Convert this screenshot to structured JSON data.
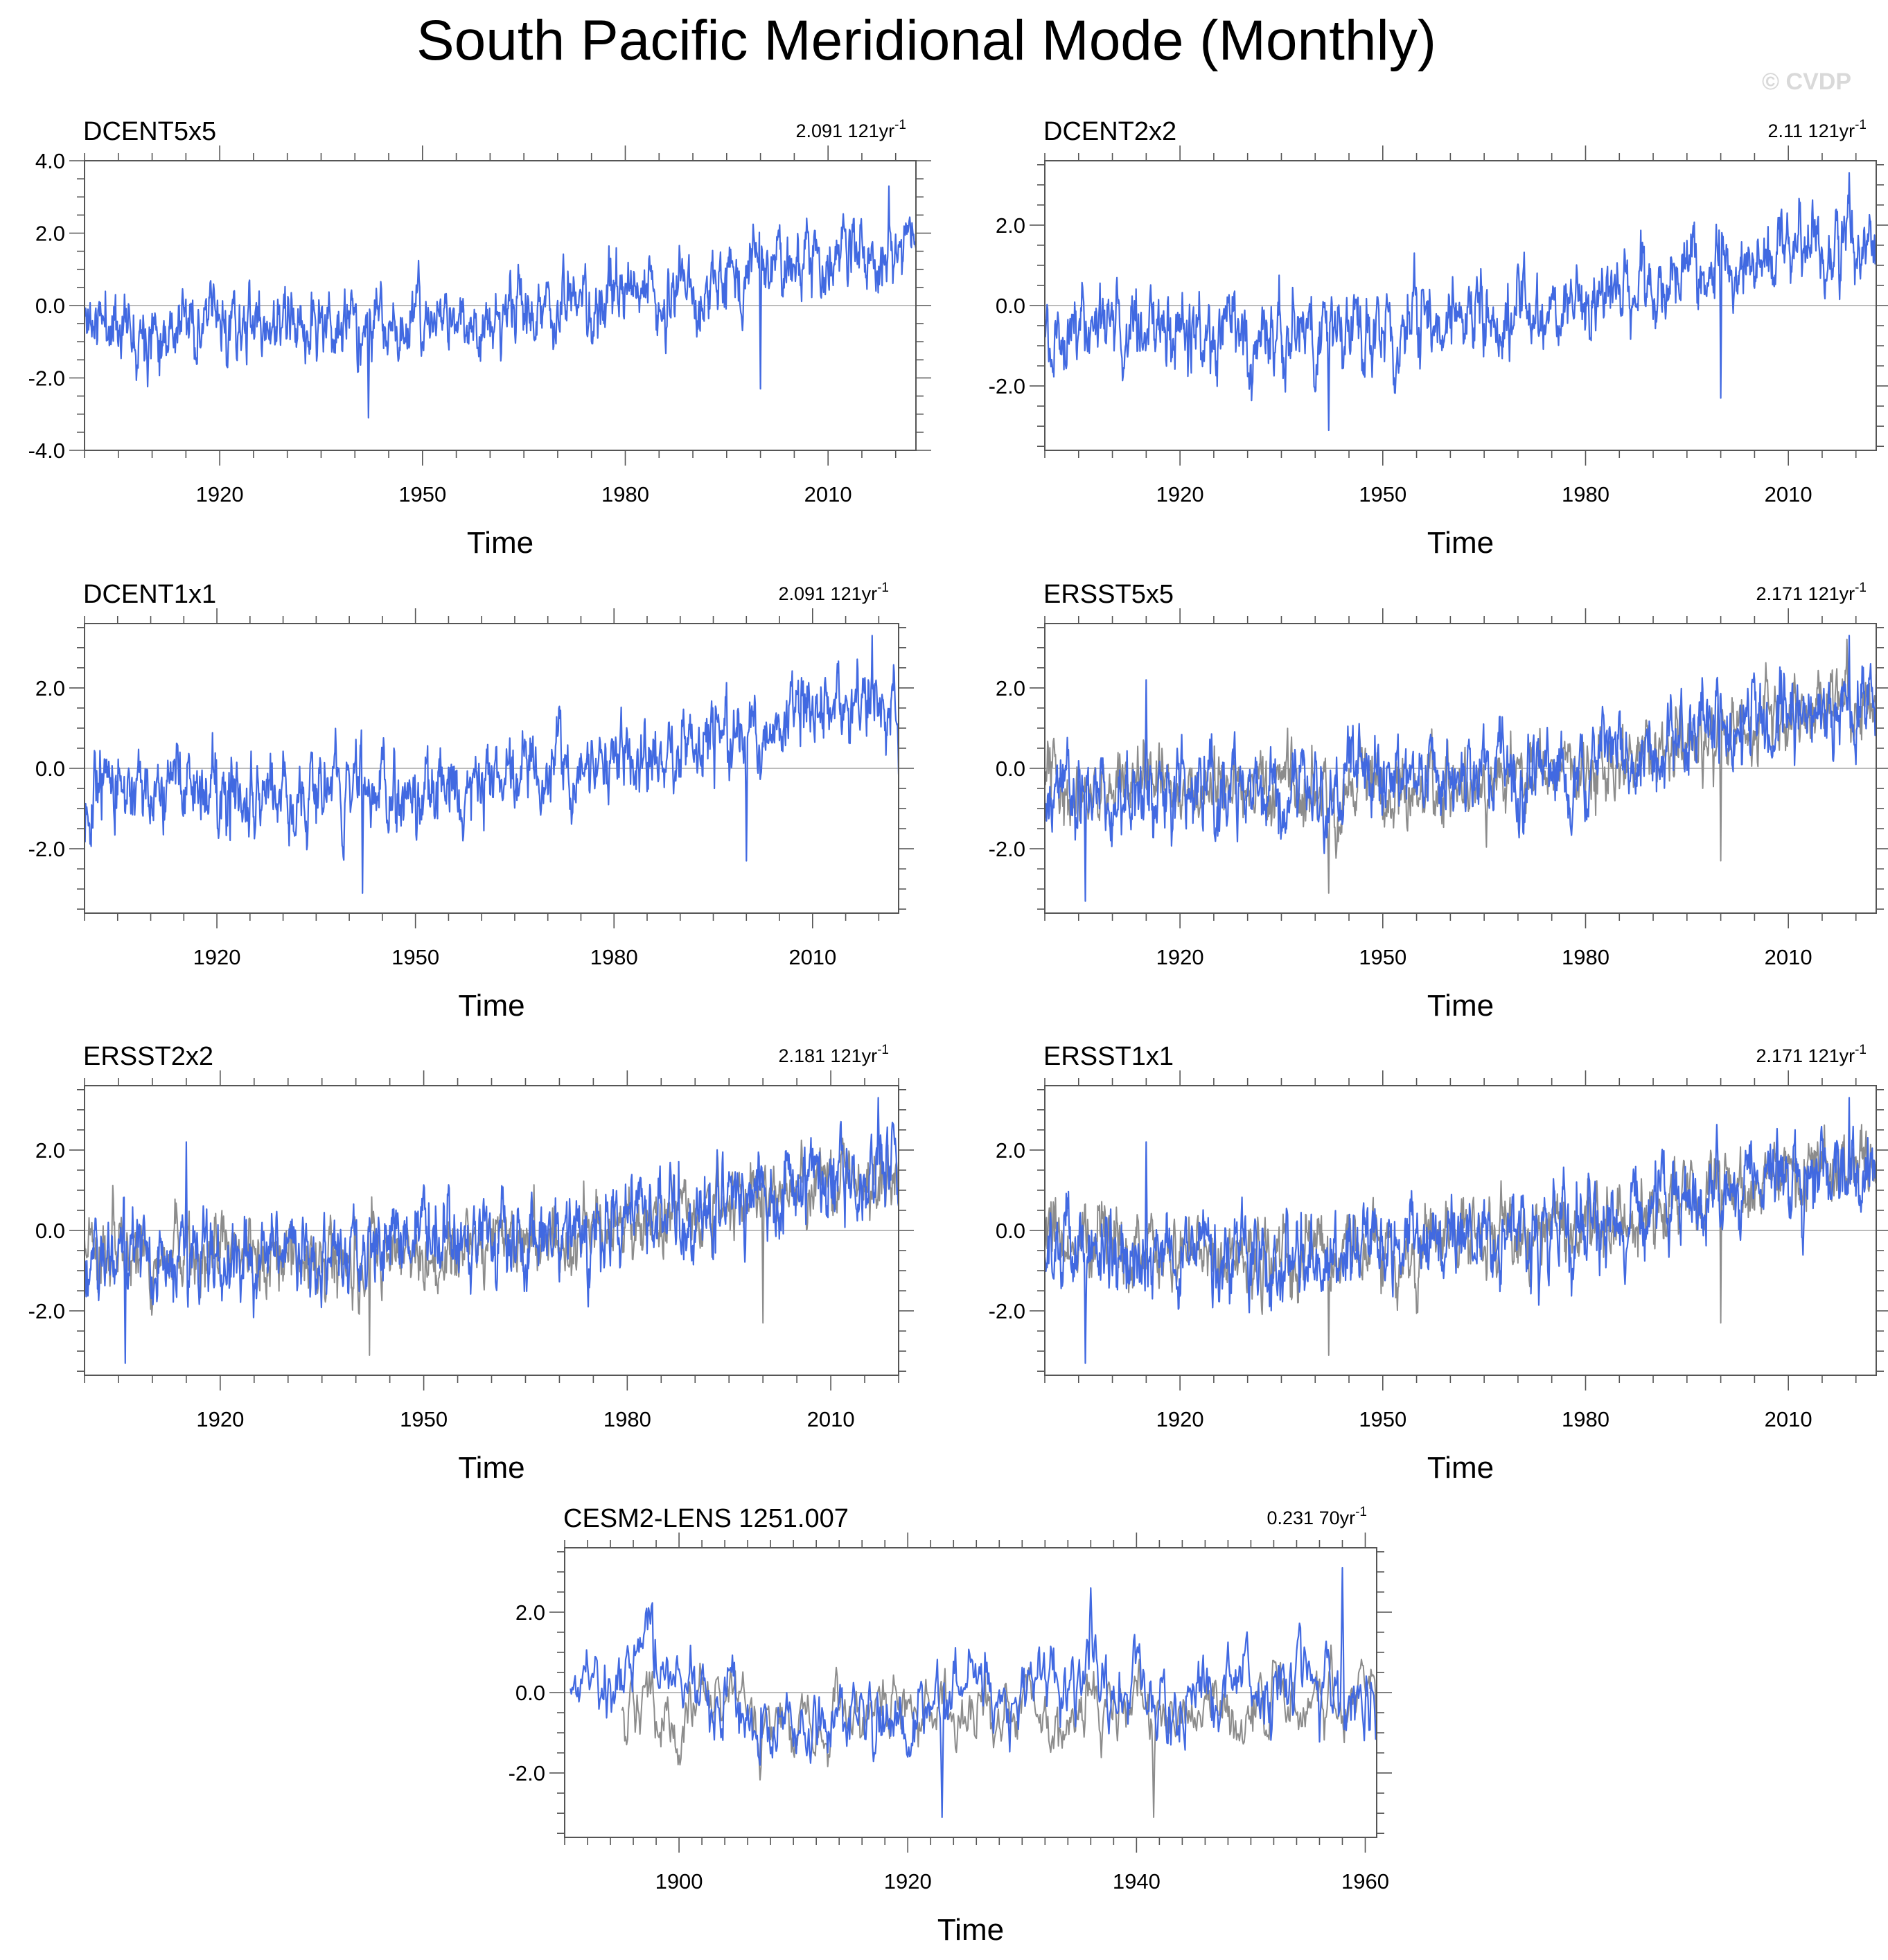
{
  "title": "South Pacific Meridional Mode (Monthly)",
  "watermark": "© CVDP",
  "colors": {
    "primary": "#4169e1",
    "reference": "#8c8c8c",
    "zero_line": "#b3b3b3",
    "frame": "#555555"
  },
  "chart_data": [
    {
      "type": "line",
      "title": "DCENT5x5",
      "trend": "2.091 121yr",
      "trend_sup": "-1",
      "xlabel": "Time",
      "ylabel": "",
      "xlim": [
        1900,
        2023
      ],
      "ylim": [
        -4.0,
        4.0
      ],
      "xticks": [
        1920,
        1950,
        1980,
        2010
      ],
      "yticks": [
        -4.0,
        -2.0,
        0.0,
        2.0,
        4.0
      ],
      "series": [
        {
          "role": "primary",
          "color": "#4169e1",
          "x_start": 1900,
          "x_end": 2023,
          "seed": 11,
          "trend_points": [
            [
              1900,
              -0.4
            ],
            [
              1930,
              -0.6
            ],
            [
              1950,
              -0.5
            ],
            [
              1970,
              -0.1
            ],
            [
              1980,
              0.2
            ],
            [
              1990,
              0.3
            ],
            [
              2000,
              0.9
            ],
            [
              2010,
              1.3
            ],
            [
              2023,
              1.6
            ]
          ],
          "amp": 0.7,
          "extremes": [
            [
              1942,
              -3.1
            ],
            [
              2000,
              -2.3
            ],
            [
              2019,
              3.3
            ]
          ]
        }
      ]
    },
    {
      "type": "line",
      "title": "DCENT2x2",
      "trend": "2.11 121yr",
      "trend_sup": "-1",
      "xlabel": "Time",
      "ylabel": "",
      "xlim": [
        1900,
        2023
      ],
      "ylim": [
        -3.6,
        3.6
      ],
      "xticks": [
        1920,
        1950,
        1980,
        2010
      ],
      "yticks": [
        -2.0,
        0.0,
        2.0
      ],
      "series": [
        {
          "role": "primary",
          "color": "#4169e1",
          "x_start": 1900,
          "x_end": 2023,
          "seed": 12,
          "trend_points": [
            [
              1900,
              -0.4
            ],
            [
              1930,
              -0.6
            ],
            [
              1950,
              -0.5
            ],
            [
              1970,
              -0.1
            ],
            [
              1980,
              0.2
            ],
            [
              1990,
              0.3
            ],
            [
              2000,
              0.9
            ],
            [
              2010,
              1.3
            ],
            [
              2023,
              1.6
            ]
          ],
          "amp": 0.7,
          "extremes": [
            [
              1942,
              -3.1
            ],
            [
              2000,
              -2.3
            ],
            [
              2019,
              3.3
            ]
          ]
        }
      ]
    },
    {
      "type": "line",
      "title": "DCENT1x1",
      "trend": "2.091 121yr",
      "trend_sup": "-1",
      "xlabel": "Time",
      "ylabel": "",
      "xlim": [
        1900,
        2023
      ],
      "ylim": [
        -3.6,
        3.6
      ],
      "xticks": [
        1920,
        1950,
        1980,
        2010
      ],
      "yticks": [
        -2.0,
        0.0,
        2.0
      ],
      "series": [
        {
          "role": "primary",
          "color": "#4169e1",
          "x_start": 1900,
          "x_end": 2023,
          "seed": 13,
          "trend_points": [
            [
              1900,
              -0.4
            ],
            [
              1930,
              -0.6
            ],
            [
              1950,
              -0.5
            ],
            [
              1970,
              -0.1
            ],
            [
              1980,
              0.2
            ],
            [
              1990,
              0.3
            ],
            [
              2000,
              0.9
            ],
            [
              2010,
              1.3
            ],
            [
              2023,
              1.6
            ]
          ],
          "amp": 0.7,
          "extremes": [
            [
              1942,
              -3.1
            ],
            [
              2000,
              -2.3
            ],
            [
              2019,
              3.3
            ]
          ]
        }
      ]
    },
    {
      "type": "line",
      "title": "ERSST5x5",
      "trend": "2.171 121yr",
      "trend_sup": "-1",
      "xlabel": "Time",
      "ylabel": "",
      "xlim": [
        1900,
        2023
      ],
      "ylim": [
        -3.6,
        3.6
      ],
      "xticks": [
        1920,
        1950,
        1980,
        2010
      ],
      "yticks": [
        -2.0,
        0.0,
        2.0
      ],
      "series": [
        {
          "role": "reference",
          "color": "#8c8c8c",
          "x_start": 1900,
          "x_end": 2023,
          "seed": 31,
          "trend_points": [
            [
              1900,
              -0.4
            ],
            [
              1930,
              -0.6
            ],
            [
              1950,
              -0.5
            ],
            [
              1970,
              -0.1
            ],
            [
              1980,
              0.2
            ],
            [
              1990,
              0.3
            ],
            [
              2000,
              0.9
            ],
            [
              2010,
              1.3
            ],
            [
              2023,
              1.6
            ]
          ],
          "amp": 0.65,
          "extremes": [
            [
              1942,
              -3.1
            ],
            [
              2000,
              -2.3
            ]
          ]
        },
        {
          "role": "primary",
          "color": "#4169e1",
          "x_start": 1900,
          "x_end": 2023,
          "seed": 14,
          "trend_points": [
            [
              1900,
              -0.6
            ],
            [
              1930,
              -0.7
            ],
            [
              1950,
              -0.3
            ],
            [
              1970,
              -0.1
            ],
            [
              1980,
              0.2
            ],
            [
              1990,
              0.5
            ],
            [
              2000,
              1.0
            ],
            [
              2010,
              1.4
            ],
            [
              2023,
              1.5
            ]
          ],
          "amp": 0.75,
          "extremes": [
            [
              1906,
              -3.3
            ],
            [
              1915,
              2.2
            ],
            [
              2019,
              3.3
            ]
          ]
        }
      ]
    },
    {
      "type": "line",
      "title": "ERSST2x2",
      "trend": "2.181 121yr",
      "trend_sup": "-1",
      "xlabel": "Time",
      "ylabel": "",
      "xlim": [
        1900,
        2020
      ],
      "ylim": [
        -3.6,
        3.6
      ],
      "xticks": [
        1920,
        1950,
        1980,
        2010
      ],
      "yticks": [
        -2.0,
        0.0,
        2.0
      ],
      "series": [
        {
          "role": "reference",
          "color": "#8c8c8c",
          "x_start": 1900,
          "x_end": 2020,
          "seed": 32,
          "trend_points": [
            [
              1900,
              -0.4
            ],
            [
              1930,
              -0.6
            ],
            [
              1950,
              -0.5
            ],
            [
              1970,
              -0.1
            ],
            [
              1980,
              0.2
            ],
            [
              1990,
              0.3
            ],
            [
              2000,
              0.9
            ],
            [
              2010,
              1.3
            ],
            [
              2020,
              1.5
            ]
          ],
          "amp": 0.65,
          "extremes": [
            [
              1942,
              -3.1
            ],
            [
              2000,
              -2.3
            ]
          ]
        },
        {
          "role": "primary",
          "color": "#4169e1",
          "x_start": 1900,
          "x_end": 2020,
          "seed": 15,
          "trend_points": [
            [
              1900,
              -0.6
            ],
            [
              1930,
              -0.7
            ],
            [
              1950,
              -0.3
            ],
            [
              1970,
              -0.1
            ],
            [
              1980,
              0.2
            ],
            [
              1990,
              0.5
            ],
            [
              2000,
              1.0
            ],
            [
              2010,
              1.4
            ],
            [
              2020,
              1.5
            ]
          ],
          "amp": 0.75,
          "extremes": [
            [
              1906,
              -3.3
            ],
            [
              1915,
              2.2
            ],
            [
              2017,
              3.3
            ]
          ]
        }
      ]
    },
    {
      "type": "line",
      "title": "ERSST1x1",
      "trend": "2.171 121yr",
      "trend_sup": "-1",
      "xlabel": "Time",
      "ylabel": "",
      "xlim": [
        1900,
        2023
      ],
      "ylim": [
        -3.6,
        3.6
      ],
      "xticks": [
        1920,
        1950,
        1980,
        2010
      ],
      "yticks": [
        -2.0,
        0.0,
        2.0
      ],
      "series": [
        {
          "role": "reference",
          "color": "#8c8c8c",
          "x_start": 1900,
          "x_end": 2023,
          "seed": 33,
          "trend_points": [
            [
              1900,
              -0.4
            ],
            [
              1930,
              -0.6
            ],
            [
              1950,
              -0.5
            ],
            [
              1970,
              -0.1
            ],
            [
              1980,
              0.2
            ],
            [
              1990,
              0.3
            ],
            [
              2000,
              0.9
            ],
            [
              2010,
              1.3
            ],
            [
              2023,
              1.6
            ]
          ],
          "amp": 0.65,
          "extremes": [
            [
              1942,
              -3.1
            ],
            [
              2000,
              -2.3
            ]
          ]
        },
        {
          "role": "primary",
          "color": "#4169e1",
          "x_start": 1900,
          "x_end": 2023,
          "seed": 16,
          "trend_points": [
            [
              1900,
              -0.6
            ],
            [
              1930,
              -0.7
            ],
            [
              1950,
              -0.3
            ],
            [
              1970,
              -0.1
            ],
            [
              1980,
              0.2
            ],
            [
              1990,
              0.5
            ],
            [
              2000,
              1.0
            ],
            [
              2010,
              1.4
            ],
            [
              2023,
              1.5
            ]
          ],
          "amp": 0.75,
          "extremes": [
            [
              1906,
              -3.3
            ],
            [
              1915,
              2.2
            ],
            [
              2019,
              3.3
            ]
          ]
        }
      ]
    },
    {
      "type": "line",
      "title": "CESM2-LENS 1251.007",
      "trend": "0.231 70yr",
      "trend_sup": "-1",
      "xlabel": "Time",
      "ylabel": "",
      "xlim": [
        1890,
        1961
      ],
      "ylim": [
        -3.6,
        3.6
      ],
      "xticks": [
        1900,
        1920,
        1940,
        1960
      ],
      "yticks": [
        -2.0,
        0.0,
        2.0
      ],
      "series": [
        {
          "role": "reference",
          "color": "#8c8c8c",
          "x_start": 1895,
          "x_end": 1961,
          "seed": 34,
          "trend_points": [
            [
              1895,
              -0.4
            ],
            [
              1910,
              -0.6
            ],
            [
              1920,
              -0.4
            ],
            [
              1930,
              -0.5
            ],
            [
              1940,
              -0.3
            ],
            [
              1950,
              -0.4
            ],
            [
              1961,
              -0.3
            ]
          ],
          "amp": 0.6,
          "extremes": [
            [
              1941.5,
              -3.1
            ]
          ]
        },
        {
          "role": "primary",
          "color": "#4169e1",
          "x_start": 1890.5,
          "x_end": 1961,
          "seed": 17,
          "trend_points": [
            [
              1890.5,
              0.4
            ],
            [
              1897,
              0.9
            ],
            [
              1900,
              -0.3
            ],
            [
              1910,
              -0.6
            ],
            [
              1915,
              -0.8
            ],
            [
              1920,
              -0.6
            ],
            [
              1925,
              -0.4
            ],
            [
              1930,
              0.1
            ],
            [
              1940,
              0.2
            ],
            [
              1950,
              0.0
            ],
            [
              1961,
              -0.2
            ]
          ],
          "amp": 0.75,
          "extremes": [
            [
              1923,
              -3.1
            ],
            [
              1936,
              2.6
            ],
            [
              1958,
              3.1
            ]
          ]
        }
      ]
    }
  ]
}
